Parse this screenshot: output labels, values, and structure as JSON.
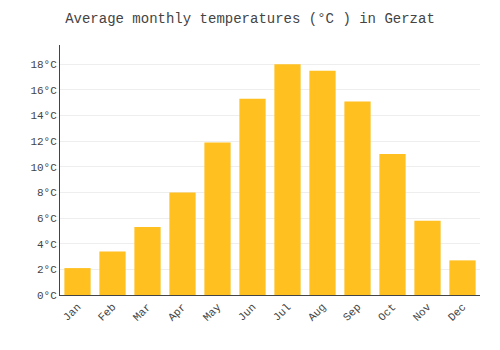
{
  "chart_data": {
    "type": "bar",
    "title": "Average monthly temperatures (°C ) in Gerzat",
    "categories": [
      "Jan",
      "Feb",
      "Mar",
      "Apr",
      "May",
      "Jun",
      "Jul",
      "Aug",
      "Sep",
      "Oct",
      "Nov",
      "Dec"
    ],
    "values": [
      2.1,
      3.4,
      5.3,
      8.0,
      11.9,
      15.3,
      18.0,
      17.5,
      15.1,
      11.0,
      5.8,
      2.7
    ],
    "color": "#FFC020",
    "ylim": [
      0,
      19.5
    ],
    "yticks": [
      {
        "value": 0,
        "label": "0°C"
      },
      {
        "value": 2,
        "label": "2°C"
      },
      {
        "value": 4,
        "label": "4°C"
      },
      {
        "value": 6,
        "label": "6°C"
      },
      {
        "value": 8,
        "label": "8°C"
      },
      {
        "value": 10,
        "label": "10°C"
      },
      {
        "value": 12,
        "label": "12°C"
      },
      {
        "value": 14,
        "label": "14°C"
      },
      {
        "value": 16,
        "label": "16°C"
      },
      {
        "value": 18,
        "label": "18°C"
      }
    ],
    "grid": true
  }
}
